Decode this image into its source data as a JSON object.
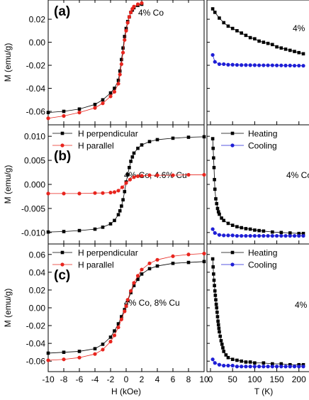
{
  "chart_data": [
    {
      "type": "line",
      "panel_label": "(a)",
      "annotation": "4% Co",
      "ylabel": "M (emu/g)",
      "yticks": [
        "0.02",
        "0.00",
        "-0.02",
        "-0.04",
        "-0.06"
      ],
      "ylim": [
        -0.068,
        0.033
      ],
      "xlim": [
        -10,
        10
      ],
      "legend": [],
      "series": [
        {
          "name": "",
          "color": "#000000",
          "marker": "square",
          "x": [
            -10,
            -8,
            -6,
            -4,
            -3,
            -2,
            -1.5,
            -1,
            -0.8,
            -0.6,
            -0.4,
            -0.2,
            0,
            0.2,
            0.4,
            0.6,
            0.8,
            1,
            1.5,
            2
          ],
          "y": [
            -0.061,
            -0.06,
            -0.058,
            -0.054,
            -0.05,
            -0.044,
            -0.04,
            -0.033,
            -0.025,
            -0.015,
            -0.005,
            0.005,
            0.012,
            0.018,
            0.022,
            0.026,
            0.028,
            0.03,
            0.032,
            0.033
          ]
        },
        {
          "name": "",
          "color": "#e8251e",
          "marker": "circle",
          "x": [
            -10,
            -8,
            -6,
            -4,
            -3,
            -2,
            -1.5,
            -1,
            -0.8,
            -0.6,
            -0.4,
            -0.2,
            0,
            0.2,
            0.4,
            0.6,
            0.8,
            1,
            1.5,
            2
          ],
          "y": [
            -0.066,
            -0.064,
            -0.061,
            -0.057,
            -0.053,
            -0.047,
            -0.043,
            -0.036,
            -0.028,
            -0.019,
            -0.009,
            0.002,
            0.01,
            0.017,
            0.022,
            0.026,
            0.029,
            0.031,
            0.033,
            0.034
          ]
        }
      ],
      "right_panel": {
        "annotation": "4%",
        "ylim": [
          -0.068,
          0.033
        ],
        "xlim": [
          0,
          210
        ],
        "series": [
          {
            "name": "",
            "color": "#000000",
            "marker": "square",
            "x": [
              5,
              10,
              20,
              30,
              40,
              50,
              60,
              70,
              80,
              90,
              100,
              110,
              120,
              130,
              140,
              150,
              160,
              170,
              180,
              190,
              200,
              210
            ],
            "y": [
              0.029,
              0.026,
              0.021,
              0.017,
              0.014,
              0.012,
              0.01,
              0.008,
              0.006,
              0.004,
              0.003,
              0.001,
              0.0,
              -0.001,
              -0.002,
              -0.004,
              -0.005,
              -0.006,
              -0.007,
              -0.008,
              -0.009,
              -0.01
            ]
          },
          {
            "name": "",
            "color": "#1f1fd6",
            "marker": "circle",
            "x": [
              5,
              10,
              20,
              30,
              40,
              50,
              60,
              70,
              80,
              90,
              100,
              110,
              120,
              130,
              140,
              150,
              160,
              170,
              180,
              190,
              200,
              210
            ],
            "y": [
              -0.011,
              -0.017,
              -0.019,
              -0.019,
              -0.0195,
              -0.0195,
              -0.0197,
              -0.0198,
              -0.0198,
              -0.0199,
              -0.0199,
              -0.02,
              -0.02,
              -0.02,
              -0.02,
              -0.0201,
              -0.0201,
              -0.0202,
              -0.0202,
              -0.0203,
              -0.0203,
              -0.0204
            ]
          }
        ]
      }
    },
    {
      "type": "line",
      "panel_label": "(b)",
      "annotation": "4% Co, 4.6% Cu",
      "ylabel": "M (emu/g)",
      "yticks": [
        "0.010",
        "0.005",
        "0.000",
        "-0.005",
        "-0.010"
      ],
      "ylim": [
        -0.0115,
        0.0115
      ],
      "xlim": [
        -10,
        10
      ],
      "legend": [
        "H perpendicular",
        "H parallel"
      ],
      "series": [
        {
          "name": "H perpendicular",
          "color": "#000000",
          "marker": "square",
          "x": [
            -10,
            -8,
            -6,
            -4,
            -3,
            -2,
            -1.5,
            -1,
            -0.8,
            -0.6,
            -0.4,
            -0.2,
            0,
            0.2,
            0.4,
            0.6,
            0.8,
            1,
            1.5,
            2,
            3,
            4,
            6,
            8,
            10
          ],
          "y": [
            -0.0099,
            -0.0098,
            -0.0096,
            -0.0093,
            -0.0089,
            -0.0082,
            -0.0075,
            -0.0063,
            -0.0055,
            -0.0045,
            -0.0032,
            -0.0015,
            0.0005,
            0.002,
            0.0035,
            0.0048,
            0.0057,
            0.0065,
            0.0075,
            0.0082,
            0.0089,
            0.0093,
            0.0096,
            0.0098,
            0.0099
          ]
        },
        {
          "name": "H parallel",
          "color": "#e8251e",
          "marker": "circle",
          "x": [
            -10,
            -8,
            -6,
            -4,
            -3,
            -2,
            -1.5,
            -1,
            -0.5,
            0,
            0.5,
            1,
            1.5,
            2,
            3,
            4,
            6,
            8,
            10
          ],
          "y": [
            -0.0019,
            -0.0019,
            -0.0019,
            -0.0018,
            -0.0018,
            -0.0017,
            -0.0016,
            -0.0013,
            -0.0006,
            0.0003,
            0.001,
            0.0015,
            0.0017,
            0.0018,
            0.0019,
            0.0019,
            0.0019,
            0.002,
            0.002
          ]
        }
      ],
      "right_panel": {
        "annotation": "4% Co",
        "ylim": [
          -0.0115,
          0.0115
        ],
        "xlim": [
          0,
          210
        ],
        "legend": [
          "Heating",
          "Cooling"
        ],
        "series": [
          {
            "name": "Heating",
            "color": "#000000",
            "marker": "square",
            "x": [
              5,
              6,
              7,
              8,
              9,
              10,
              12,
              14,
              16,
              18,
              20,
              25,
              30,
              40,
              50,
              60,
              70,
              80,
              90,
              100,
              110,
              120,
              140,
              160,
              180,
              200,
              210
            ],
            "y": [
              0.0095,
              0.0075,
              0.0055,
              0.0035,
              0.001,
              -0.001,
              -0.003,
              -0.004,
              -0.005,
              -0.0057,
              -0.0062,
              -0.007,
              -0.0075,
              -0.0081,
              -0.0085,
              -0.0088,
              -0.009,
              -0.0092,
              -0.0093,
              -0.0095,
              -0.0096,
              -0.0097,
              -0.0099,
              -0.01,
              -0.0101,
              -0.0102,
              -0.0102
            ]
          },
          {
            "name": "Cooling",
            "color": "#1f1fd6",
            "marker": "circle",
            "x": [
              5,
              10,
              20,
              30,
              40,
              50,
              60,
              70,
              80,
              90,
              100,
              110,
              120,
              130,
              140,
              150,
              160,
              170,
              180,
              190,
              200,
              210
            ],
            "y": [
              -0.0093,
              -0.0101,
              -0.0105,
              -0.0106,
              -0.0106,
              -0.0106,
              -0.0107,
              -0.0107,
              -0.0107,
              -0.0107,
              -0.0107,
              -0.0107,
              -0.0107,
              -0.0107,
              -0.0107,
              -0.0107,
              -0.0107,
              -0.0107,
              -0.0107,
              -0.0107,
              -0.0107,
              -0.0107
            ]
          }
        ]
      }
    },
    {
      "type": "line",
      "panel_label": "(c)",
      "annotation": "4% Co, 8% Cu",
      "ylabel": "M (emu/g)",
      "xlabel": "H (kOe)",
      "yticks": [
        "0.06",
        "0.04",
        "0.02",
        "0.00",
        "-0.02",
        "-0.04",
        "-0.06"
      ],
      "xticks": [
        "-10",
        "-8",
        "-6",
        "-4",
        "-2",
        "0",
        "2",
        "4",
        "6",
        "8",
        "10"
      ],
      "ylim": [
        -0.067,
        0.067
      ],
      "xlim": [
        -10,
        10
      ],
      "legend": [
        "H perpendicular",
        "H parallel"
      ],
      "series": [
        {
          "name": "H perpendicular",
          "color": "#000000",
          "marker": "square",
          "x": [
            -10,
            -8,
            -6,
            -4,
            -3,
            -2,
            -1.5,
            -1,
            -0.6,
            -0.2,
            0,
            0.2,
            0.6,
            1,
            1.5,
            2,
            3,
            4,
            6,
            8,
            10
          ],
          "y": [
            -0.051,
            -0.05,
            -0.049,
            -0.046,
            -0.041,
            -0.033,
            -0.026,
            -0.018,
            -0.01,
            -0.002,
            0.002,
            0.008,
            0.017,
            0.025,
            0.032,
            0.038,
            0.044,
            0.047,
            0.05,
            0.051,
            0.052
          ]
        },
        {
          "name": "H parallel",
          "color": "#e8251e",
          "marker": "circle",
          "x": [
            -10,
            -8,
            -6,
            -4,
            -3,
            -2,
            -1.5,
            -1,
            -0.6,
            -0.2,
            0,
            0.2,
            0.6,
            1,
            1.5,
            2,
            3,
            4,
            6,
            8,
            10
          ],
          "y": [
            -0.059,
            -0.058,
            -0.056,
            -0.052,
            -0.047,
            -0.038,
            -0.031,
            -0.022,
            -0.013,
            -0.004,
            0.002,
            0.009,
            0.019,
            0.028,
            0.036,
            0.043,
            0.05,
            0.054,
            0.058,
            0.06,
            0.061
          ]
        }
      ],
      "right_panel": {
        "annotation": "4%",
        "xlabel": "T (K)",
        "xticks": [
          "0",
          "50",
          "100",
          "150",
          "200"
        ],
        "ylim": [
          -0.067,
          0.067
        ],
        "xlim": [
          -5,
          210
        ],
        "legend": [
          "Heating",
          "Cooling"
        ],
        "series": [
          {
            "name": "Heating",
            "color": "#000000",
            "marker": "square",
            "x": [
              5,
              6,
              7,
              8,
              9,
              10,
              11,
              12,
              13,
              14,
              15,
              16,
              17,
              18,
              19,
              20,
              22,
              24,
              26,
              28,
              30,
              35,
              40,
              50,
              60,
              70,
              80,
              90,
              100,
              120,
              140,
              160,
              180,
              200,
              210
            ],
            "y": [
              0.055,
              0.046,
              0.038,
              0.031,
              0.025,
              0.019,
              0.014,
              0.009,
              0.004,
              0.0,
              -0.005,
              -0.01,
              -0.015,
              -0.019,
              -0.023,
              -0.027,
              -0.032,
              -0.037,
              -0.041,
              -0.045,
              -0.049,
              -0.053,
              -0.056,
              -0.058,
              -0.059,
              -0.06,
              -0.061,
              -0.061,
              -0.062,
              -0.062,
              -0.063,
              -0.063,
              -0.064,
              -0.064,
              -0.064
            ]
          },
          {
            "name": "Cooling",
            "color": "#1f1fd6",
            "marker": "circle",
            "x": [
              5,
              10,
              20,
              30,
              40,
              50,
              60,
              70,
              80,
              90,
              100,
              110,
              120,
              130,
              140,
              150,
              160,
              170,
              180,
              190,
              200,
              210
            ],
            "y": [
              -0.058,
              -0.062,
              -0.064,
              -0.065,
              -0.065,
              -0.065,
              -0.066,
              -0.066,
              -0.066,
              -0.066,
              -0.066,
              -0.066,
              -0.066,
              -0.066,
              -0.066,
              -0.066,
              -0.066,
              -0.066,
              -0.066,
              -0.066,
              -0.066,
              -0.066
            ]
          }
        ]
      }
    }
  ]
}
